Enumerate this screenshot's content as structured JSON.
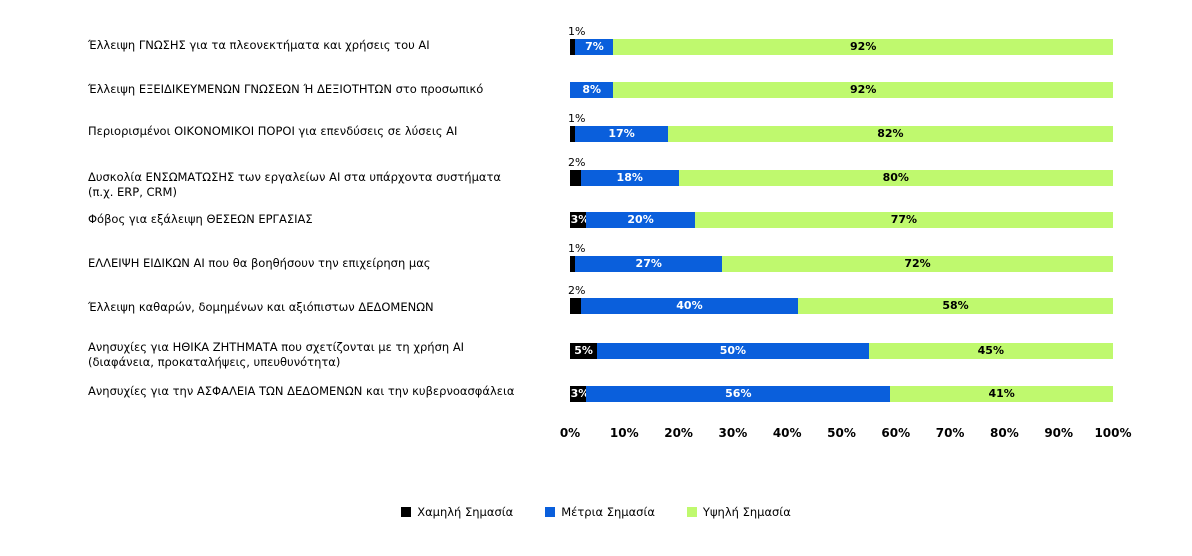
{
  "chart_data": {
    "type": "bar",
    "orientation": "horizontal",
    "stacked": true,
    "categories": [
      "Έλλειψη ΓΝΩΣΗΣ για τα πλεονεκτήματα και χρήσεις του AI",
      "Έλλειψη ΕΞΕΙΔΙΚΕΥΜΕΝΩΝ ΓΝΩΣΕΩΝ Ή ΔΕΞΙΟΤΗΤΩΝ στο προσωπικό",
      "Περιορισμένοι ΟΙΚΟΝΟΜΙΚΟΙ ΠΟΡΟΙ για επενδύσεις σε λύσεις AI",
      "Δυσκολία ΕΝΣΩΜΑΤΩΣΗΣ των εργαλείων AI στα υπάρχοντα συστήματα (π.χ. ERP, CRM)",
      "Φόβος για εξάλειψη ΘΕΣΕΩΝ ΕΡΓΑΣΙΑΣ",
      "ΕΛΛΕΙΨΗ ΕΙΔΙΚΩΝ AI που θα βοηθήσουν την επιχείρηση μας",
      "Έλλειψη καθαρών, δομημένων και αξιόπιστων ΔΕΔΟΜΕΝΩΝ",
      "Ανησυχίες για ΗΘΙΚΑ ΖΗΤΗΜΑΤΑ που σχετίζονται με τη χρήση AI (διαφάνεια, προκαταλήψεις, υπευθυνότητα)",
      "Ανησυχίες για την ΑΣΦΑΛΕΙΑ ΤΩΝ ΔΕΔΟΜΕΝΩΝ και την κυβερνοασφάλεια"
    ],
    "series": [
      {
        "name": "Χαμηλή Σημασία",
        "color": "#000000",
        "values": [
          1,
          0,
          1,
          2,
          3,
          1,
          2,
          5,
          3
        ]
      },
      {
        "name": "Μέτρια Σημασία",
        "color": "#0a5fdc",
        "values": [
          7,
          8,
          17,
          18,
          20,
          27,
          40,
          50,
          56
        ]
      },
      {
        "name": "Υψηλή Σημασία",
        "color": "#bff96e",
        "values": [
          92,
          92,
          82,
          80,
          77,
          72,
          58,
          45,
          41
        ]
      }
    ],
    "xlim": [
      0,
      100
    ],
    "xticks": [
      "0%",
      "10%",
      "20%",
      "30%",
      "40%",
      "50%",
      "60%",
      "70%",
      "80%",
      "90%",
      "100%"
    ],
    "value_suffix": "%",
    "grid": false,
    "legend_position": "bottom"
  }
}
